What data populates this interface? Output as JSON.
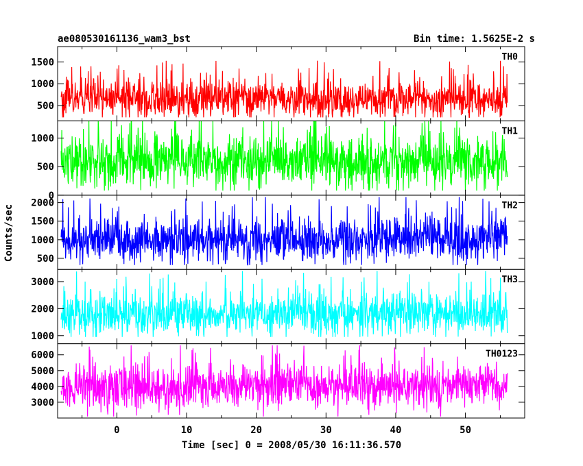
{
  "chart_data": {
    "type": "line",
    "title": "ae080530161136_wam3_bst",
    "subtitle": "Bin time: 1.5625E-2 s",
    "xlabel": "Time [sec] 0 = 2008/05/30 16:11:36.570",
    "ylabel": "Counts/sec",
    "xlim": [
      -8.5,
      58.5
    ],
    "x_range": [
      -8,
      56
    ],
    "x_ticks": [
      0,
      10,
      20,
      30,
      40,
      50
    ],
    "grid": false,
    "panels": [
      {
        "name": "TH0",
        "color": "#ff0000",
        "ylim": [
          150,
          1850
        ],
        "yticks": [
          500,
          1000,
          1500
        ],
        "level": 650,
        "spread": 220,
        "min": 230,
        "max": 1830
      },
      {
        "name": "TH1",
        "color": "#00ff00",
        "ylim": [
          0,
          1300
        ],
        "yticks": [
          0,
          500,
          1000
        ],
        "level": 600,
        "spread": 230,
        "min": 80,
        "max": 1300
      },
      {
        "name": "TH2",
        "color": "#0000ff",
        "ylim": [
          200,
          2200
        ],
        "yticks": [
          500,
          1000,
          1500,
          2000
        ],
        "level": 1000,
        "spread": 300,
        "min": 320,
        "max": 2150
      },
      {
        "name": "TH3",
        "color": "#00ffff",
        "ylim": [
          700,
          3450
        ],
        "yticks": [
          1000,
          2000,
          3000
        ],
        "level": 1800,
        "spread": 420,
        "min": 950,
        "max": 3400
      },
      {
        "name": "TH0123",
        "color": "#ff00ff",
        "ylim": [
          2000,
          6700
        ],
        "yticks": [
          3000,
          4000,
          5000,
          6000
        ],
        "level": 4000,
        "spread": 700,
        "min": 2100,
        "max": 6600
      }
    ]
  }
}
